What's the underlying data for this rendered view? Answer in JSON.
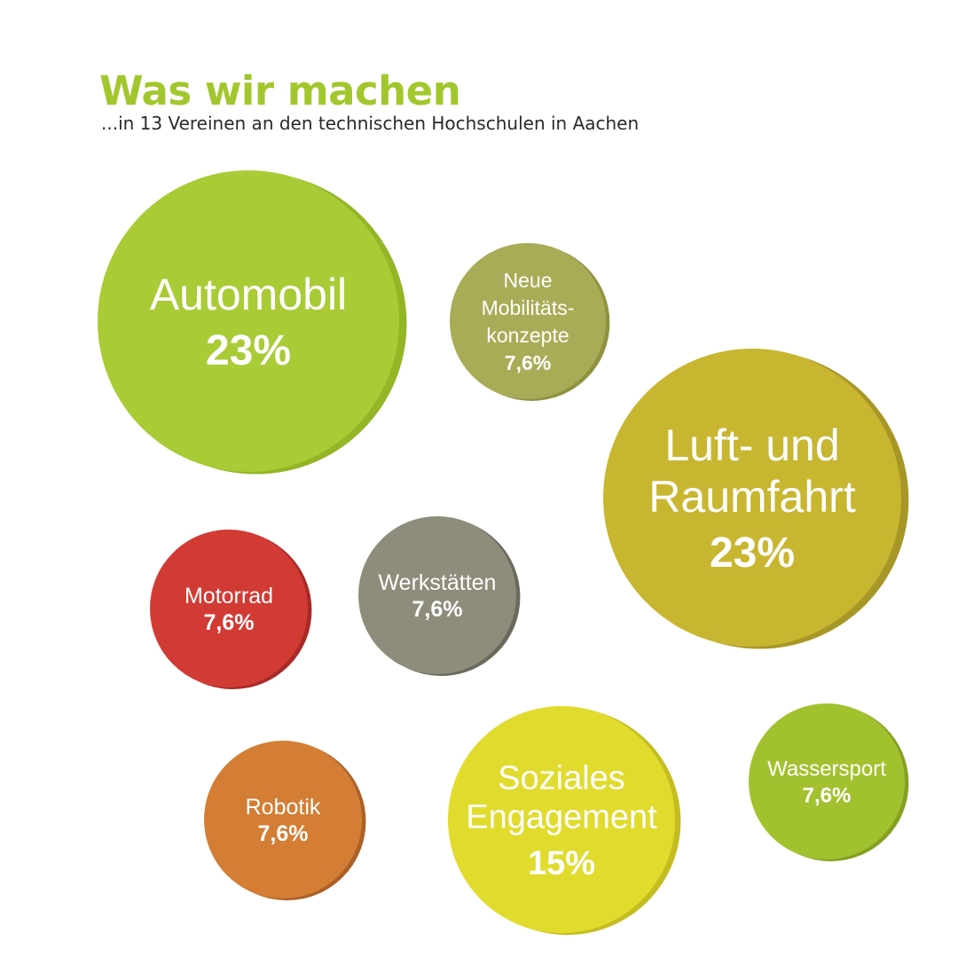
{
  "title": "Was wir machen",
  "subtitle": "...in  13 Vereinen an den technischen Hochschulen in Aachen",
  "colors": {
    "title": "#a2c72c"
  },
  "chart_data": {
    "type": "bubble",
    "unit": "%",
    "categories": [
      {
        "name": [
          "Automobil"
        ],
        "value_label": "23%",
        "value": 23,
        "color": "#a9cb36",
        "side_color": "#93b526"
      },
      {
        "name": [
          "Neue",
          "Mobilitäts-",
          "konzepte"
        ],
        "value_label": "7,6%",
        "value": 7.6,
        "color": "#a9ac57",
        "side_color": "#8f923e"
      },
      {
        "name": [
          "Luft- und",
          "Raumfahrt"
        ],
        "value_label": "23%",
        "value": 23,
        "color": "#c8b630",
        "side_color": "#a79726"
      },
      {
        "name": [
          "Motorrad"
        ],
        "value_label": "7,6%",
        "value": 7.6,
        "color": "#d23a34",
        "side_color": "#a82a27"
      },
      {
        "name": [
          "Werkstätten"
        ],
        "value_label": "7,6%",
        "value": 7.6,
        "color": "#8e8c7a",
        "side_color": "#6c6a5c"
      },
      {
        "name": [
          "Robotik"
        ],
        "value_label": "7,6%",
        "value": 7.6,
        "color": "#d37e34",
        "side_color": "#ab6126"
      },
      {
        "name": [
          "Soziales",
          "Engagement"
        ],
        "value_label": "15%",
        "value": 15,
        "color": "#e1db2e",
        "side_color": "#c4bd1f"
      },
      {
        "name": [
          "Wassersport"
        ],
        "value_label": "7,6%",
        "value": 7.6,
        "color": "#a2c12f",
        "side_color": "#84a021"
      }
    ]
  }
}
